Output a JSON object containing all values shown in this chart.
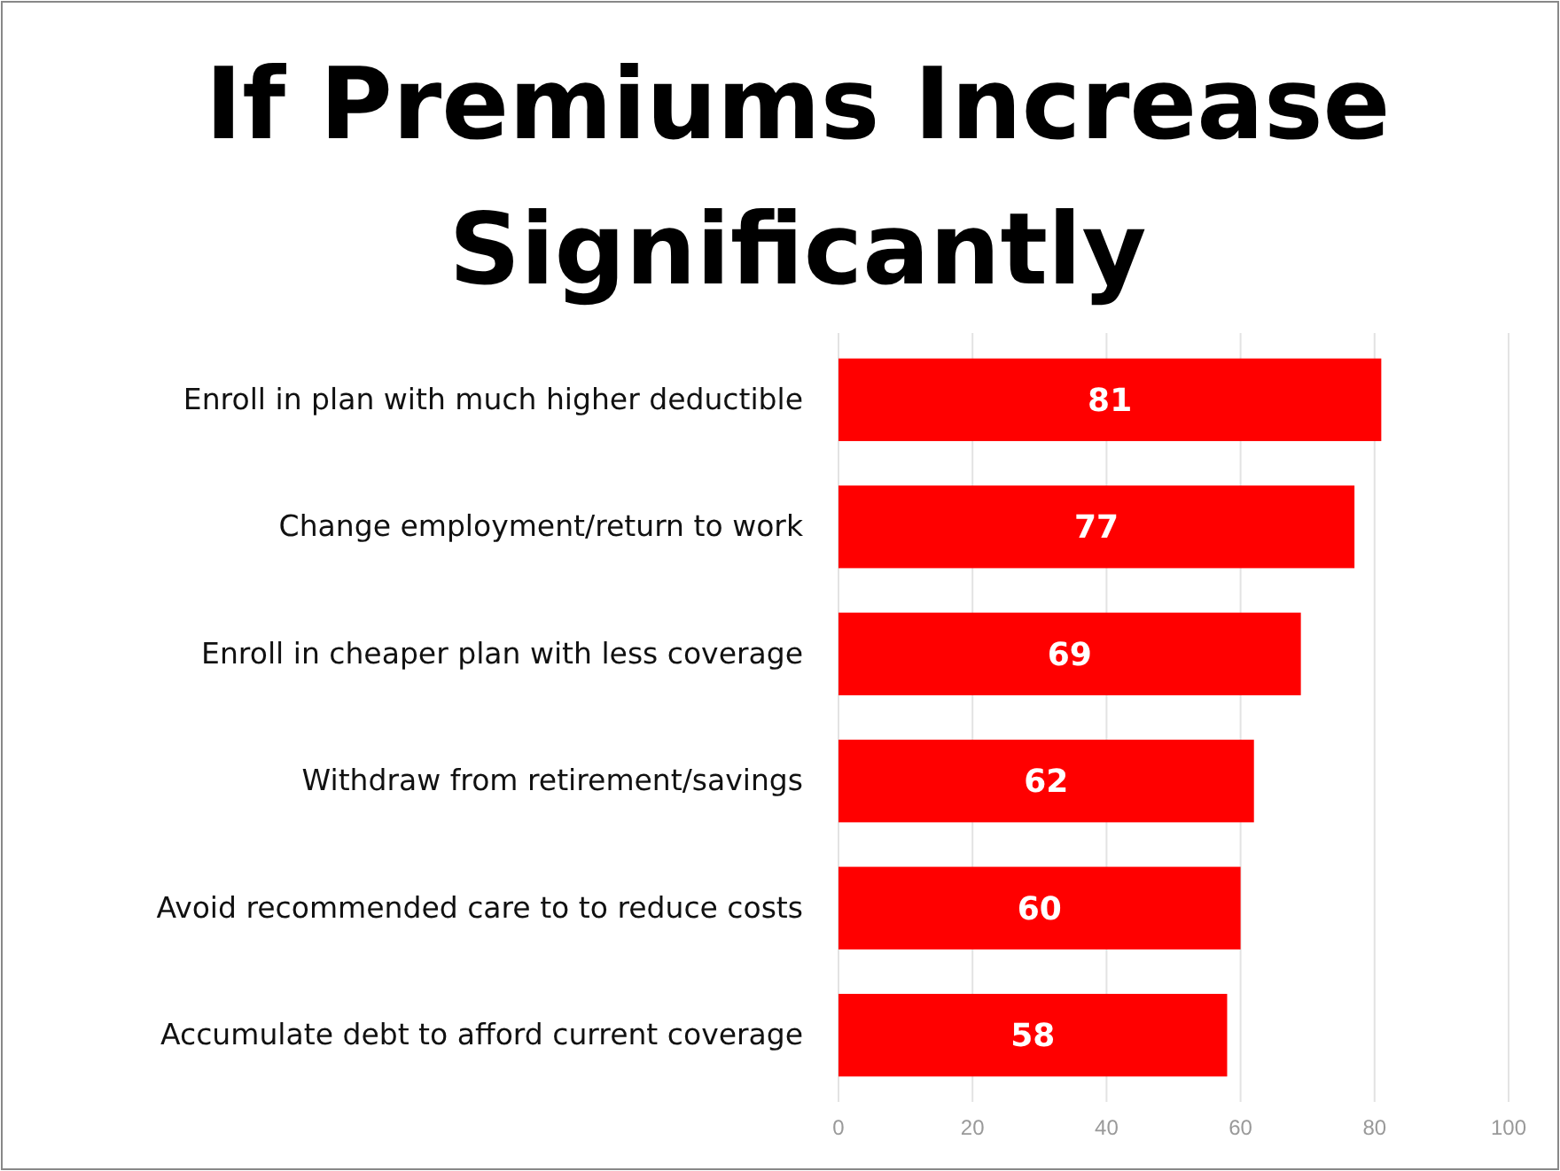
{
  "chart_data": {
    "type": "bar",
    "orientation": "horizontal",
    "title": "If Premiums Increase Significantly",
    "categories": [
      "Enroll in plan with much higher deductible",
      "Change employment/return to work",
      "Enroll in cheaper plan with less coverage",
      "Withdraw from retirement/savings",
      "Avoid recommended care to to reduce costs",
      "Accumulate debt to afford current coverage"
    ],
    "values": [
      81,
      77,
      69,
      62,
      60,
      58
    ],
    "color": "#ff0000",
    "xlim": [
      0,
      100
    ],
    "xticks": [
      0,
      20,
      40,
      60,
      80,
      100
    ],
    "grid": "x",
    "data_labels": true
  }
}
